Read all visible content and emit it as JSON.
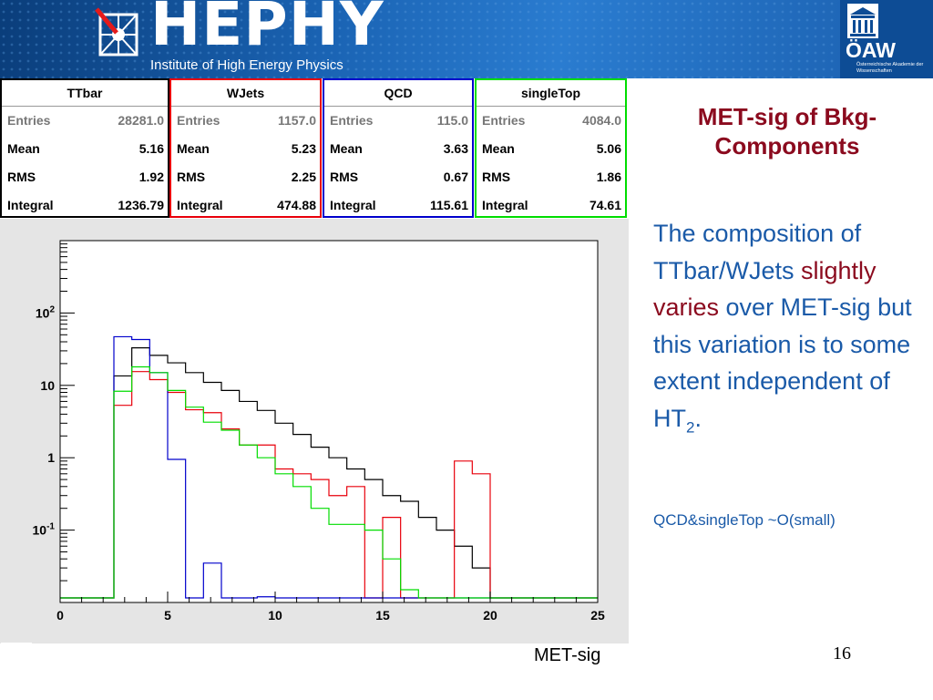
{
  "header": {
    "logo_text": "HEPHY",
    "logo_subtitle": "Institute of High Energy Physics",
    "oaw_name": "ÖAW",
    "oaw_description": "Österreichische Akademie der Wissenschaften"
  },
  "colors": {
    "ttbar": "#000000",
    "wjets": "#e8000b",
    "qcd": "#0000cc",
    "singletop": "#00dd00",
    "title_red": "#8b0a1e",
    "text_blue": "#1a5aa8"
  },
  "stats_boxes": [
    {
      "name": "TTbar",
      "color": "#000000",
      "entries_label": "Entries",
      "entries": "28281.0",
      "mean_label": "Mean",
      "mean": "5.16",
      "rms_label": "RMS",
      "rms": "1.92",
      "integral_label": "Integral",
      "integral": "1236.79"
    },
    {
      "name": "WJets",
      "color": "#e8000b",
      "entries_label": "Entries",
      "entries": "1157.0",
      "mean_label": "Mean",
      "mean": "5.23",
      "rms_label": "RMS",
      "rms": "2.25",
      "integral_label": "Integral",
      "integral": "474.88"
    },
    {
      "name": "QCD",
      "color": "#0000cc",
      "entries_label": "Entries",
      "entries": "115.0",
      "mean_label": "Mean",
      "mean": "3.63",
      "rms_label": "RMS",
      "rms": "0.67",
      "integral_label": "Integral",
      "integral": "115.61"
    },
    {
      "name": "singleTop",
      "color": "#00dd00",
      "entries_label": "Entries",
      "entries": "4084.0",
      "mean_label": "Mean",
      "mean": "5.06",
      "rms_label": "RMS",
      "rms": "1.86",
      "integral_label": "Integral",
      "integral": "74.61"
    }
  ],
  "chart_data": {
    "type": "line",
    "subtype": "step-histogram",
    "xlabel": "MET-sig",
    "ylabel": "",
    "xlim": [
      0,
      25
    ],
    "ylim_log": [
      0.01,
      1000
    ],
    "log_y": true,
    "bin_width": 0.833,
    "x_ticks": [
      "0",
      "5",
      "10",
      "15",
      "20",
      "25"
    ],
    "y_ticks": [
      {
        "value": 100,
        "base": "10",
        "exp": "2"
      },
      {
        "value": 10,
        "base": "10",
        "exp": ""
      },
      {
        "value": 1,
        "base": "1",
        "exp": ""
      },
      {
        "value": 0.1,
        "base": "10",
        "exp": "-1"
      }
    ],
    "grid": false,
    "legend": "none",
    "series": [
      {
        "name": "TTbar",
        "color": "#000000",
        "bin_starts": [
          2.5,
          3.333,
          4.167,
          5.0,
          5.833,
          6.667,
          7.5,
          8.333,
          9.167,
          10.0,
          10.833,
          11.667,
          12.5,
          13.333,
          14.167,
          15.0,
          15.833,
          16.667,
          17.5,
          18.333,
          19.167
        ],
        "values": [
          13.5,
          33,
          26,
          20.5,
          15,
          11,
          8.5,
          6,
          4.5,
          3,
          2.1,
          1.4,
          1.0,
          0.7,
          0.5,
          0.3,
          0.25,
          0.15,
          0.1,
          0.06,
          0.03
        ]
      },
      {
        "name": "WJets",
        "color": "#e8000b",
        "bin_starts": [
          2.5,
          3.333,
          4.167,
          5.0,
          5.833,
          6.667,
          7.5,
          8.333,
          9.167,
          10.0,
          10.833,
          11.667,
          12.5,
          13.333,
          14.167,
          15.0,
          15.833,
          16.667,
          17.5,
          18.333,
          19.167
        ],
        "values": [
          5.3,
          15.5,
          12,
          8,
          4.6,
          4.2,
          2.5,
          1.5,
          1.5,
          0.7,
          0.6,
          0.5,
          0.3,
          0.4,
          0.0,
          0.15,
          0.0,
          0.0,
          0.0,
          0.9,
          0.6
        ]
      },
      {
        "name": "QCD",
        "color": "#0000cc",
        "bin_starts": [
          2.5,
          3.333,
          4.167,
          5.0,
          5.833,
          6.667,
          7.5,
          8.333,
          9.167,
          10.0
        ],
        "values": [
          47,
          43,
          15,
          0.95,
          0.0,
          0.035,
          0.0,
          0.0,
          0.012,
          0.0
        ]
      },
      {
        "name": "singleTop",
        "color": "#00dd00",
        "bin_starts": [
          2.5,
          3.333,
          4.167,
          5.0,
          5.833,
          6.667,
          7.5,
          8.333,
          9.167,
          10.0,
          10.833,
          11.667,
          12.5,
          13.333,
          14.167,
          15.0,
          15.833
        ],
        "values": [
          8.3,
          18,
          15,
          8.5,
          5,
          3.1,
          2.4,
          1.5,
          1.0,
          0.6,
          0.4,
          0.2,
          0.12,
          0.12,
          0.1,
          0.04,
          0.015
        ]
      }
    ]
  },
  "slide": {
    "title": "MET-sig of Bkg-Components",
    "body_part1": "The composition of TTbar/WJets ",
    "body_highlight": "slightly varies",
    "body_part2": " over MET-sig but this variation is to some extent independent of HT",
    "body_subscript": "2",
    "body_end": ".",
    "small_note": "QCD&singleTop ~O(small)",
    "xlabel": "MET-sig",
    "page_number": "16"
  }
}
